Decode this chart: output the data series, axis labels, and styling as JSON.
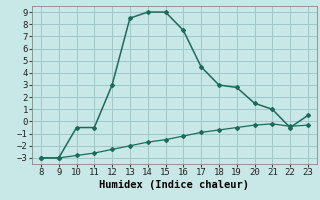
{
  "xlabel": "Humidex (Indice chaleur)",
  "ylabel": "",
  "xlim": [
    7.5,
    23.5
  ],
  "ylim": [
    -3.5,
    9.5
  ],
  "xticks": [
    8,
    9,
    10,
    11,
    12,
    13,
    14,
    15,
    16,
    17,
    18,
    19,
    20,
    21,
    22,
    23
  ],
  "yticks": [
    -3,
    -2,
    -1,
    0,
    1,
    2,
    3,
    4,
    5,
    6,
    7,
    8,
    9
  ],
  "line1_x": [
    8,
    9,
    10,
    11,
    12,
    13,
    14,
    15,
    16,
    17,
    18,
    19,
    20,
    21,
    22,
    23
  ],
  "line1_y": [
    -3.0,
    -3.0,
    -0.5,
    -0.5,
    3.0,
    8.5,
    9.0,
    9.0,
    7.5,
    4.5,
    3.0,
    2.8,
    1.5,
    1.0,
    -0.5,
    0.5
  ],
  "line2_x": [
    8,
    9,
    10,
    11,
    12,
    13,
    14,
    15,
    16,
    17,
    18,
    19,
    20,
    21,
    22,
    23
  ],
  "line2_y": [
    -3.0,
    -3.0,
    -2.8,
    -2.6,
    -2.3,
    -2.0,
    -1.7,
    -1.5,
    -1.2,
    -0.9,
    -0.7,
    -0.5,
    -0.3,
    -0.2,
    -0.4,
    -0.3
  ],
  "line_color": "#1a6b5a",
  "bg_color": "#c8e8e8",
  "grid_color": "#a0c8c8",
  "tick_fontsize": 6.5,
  "xlabel_fontsize": 7.5,
  "marker": "D",
  "markersize": 2.0,
  "linewidth1": 1.1,
  "linewidth2": 0.9
}
